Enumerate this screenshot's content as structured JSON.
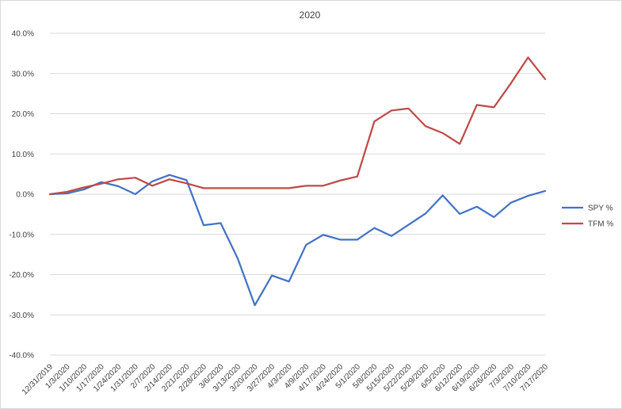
{
  "chart_data": {
    "type": "line",
    "title": "2020",
    "xlabel": "",
    "ylabel": "",
    "ylim": [
      -40,
      40
    ],
    "yticks": [
      "40.0%",
      "30.0%",
      "20.0%",
      "10.0%",
      "0.0%",
      "-10.0%",
      "-20.0%",
      "-30.0%",
      "-40.0%"
    ],
    "ytick_values": [
      40,
      30,
      20,
      10,
      0,
      -10,
      -20,
      -30,
      -40
    ],
    "grid": true,
    "legend_position": "right",
    "categories": [
      "12/31/2019",
      "1/3/2020",
      "1/10/2020",
      "1/17/2020",
      "1/24/2020",
      "1/31/2020",
      "2/7/2020",
      "2/14/2020",
      "2/21/2020",
      "2/28/2020",
      "3/6/2020",
      "3/13/2020",
      "3/20/2020",
      "3/27/2020",
      "4/3/2020",
      "4/9/2020",
      "4/17/2020",
      "4/24/2020",
      "5/1/2020",
      "5/8/2020",
      "5/15/2020",
      "5/22/2020",
      "5/29/2020",
      "6/5/2020",
      "6/12/2020",
      "6/19/2020",
      "6/26/2020",
      "7/3/2020",
      "7/10/2020",
      "7/17/2020"
    ],
    "series": [
      {
        "name": "SPY %",
        "color": "#4472c4",
        "values": [
          0.0,
          0.2,
          1.2,
          3.0,
          2.0,
          0.0,
          3.2,
          4.8,
          3.5,
          -7.7,
          -7.2,
          -16.0,
          -27.6,
          -20.2,
          -21.7,
          -12.6,
          -10.1,
          -11.3,
          -11.3,
          -8.4,
          -10.4,
          -7.6,
          -4.8,
          -0.3,
          -4.9,
          -3.1,
          -5.7,
          -2.1,
          -0.4,
          0.8
        ]
      },
      {
        "name": "TFM %",
        "color": "#be4b48",
        "values": [
          0.0,
          0.6,
          1.7,
          2.6,
          3.7,
          4.1,
          2.1,
          3.7,
          2.7,
          1.5,
          1.5,
          1.5,
          1.5,
          1.5,
          1.5,
          2.1,
          2.1,
          3.4,
          4.4,
          18.1,
          20.8,
          21.3,
          16.9,
          15.2,
          12.5,
          22.2,
          21.6,
          27.6,
          34.0,
          28.6
        ]
      }
    ]
  }
}
